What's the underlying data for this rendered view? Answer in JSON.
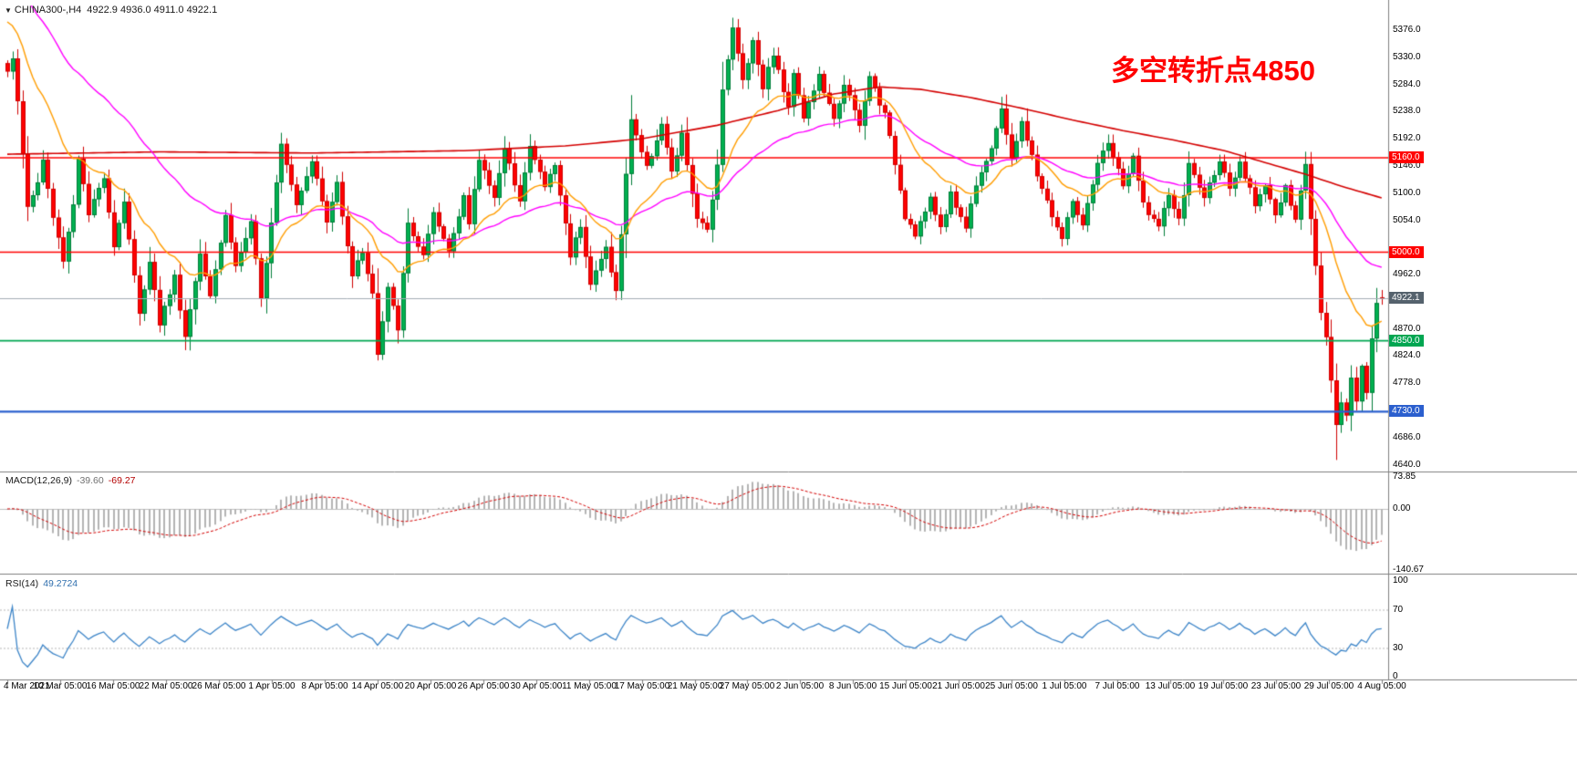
{
  "header": {
    "dropdown_icon": "▼",
    "symbol_period": "CHINA300-,H4",
    "ohlc_values": "4922.9 4936.0 4911.0 4922.1"
  },
  "chart_data": {
    "type": "candlestick",
    "symbol": "CHINA300-",
    "timeframe": "H4",
    "annotation": {
      "text": "多空转折点4850",
      "color": "#ff0000"
    },
    "last_candle": {
      "open": 4922.9,
      "high": 4936.0,
      "low": 4911.0,
      "close": 4922.1
    },
    "candles_n": 272,
    "price_path": [
      [
        0,
        5310
      ],
      [
        1,
        5332
      ],
      [
        2,
        5252
      ],
      [
        4,
        5078
      ],
      [
        6,
        5118
      ],
      [
        7,
        5156
      ],
      [
        9,
        5058
      ],
      [
        11,
        4988
      ],
      [
        13,
        5082
      ],
      [
        14,
        5162
      ],
      [
        16,
        5062
      ],
      [
        19,
        5130
      ],
      [
        21,
        5012
      ],
      [
        23,
        5088
      ],
      [
        26,
        4893
      ],
      [
        28,
        4988
      ],
      [
        30,
        4880
      ],
      [
        33,
        4958
      ],
      [
        35,
        4856
      ],
      [
        38,
        5000
      ],
      [
        40,
        4930
      ],
      [
        43,
        5062
      ],
      [
        45,
        4976
      ],
      [
        48,
        5048
      ],
      [
        50,
        4920
      ],
      [
        54,
        5188
      ],
      [
        57,
        5082
      ],
      [
        60,
        5158
      ],
      [
        63,
        5050
      ],
      [
        65,
        5118
      ],
      [
        68,
        4962
      ],
      [
        70,
        5002
      ],
      [
        72,
        4930
      ],
      [
        73,
        4825
      ],
      [
        75,
        4938
      ],
      [
        77,
        4872
      ],
      [
        79,
        5048
      ],
      [
        82,
        4992
      ],
      [
        84,
        5062
      ],
      [
        87,
        5002
      ],
      [
        90,
        5098
      ],
      [
        91,
        5046
      ],
      [
        93,
        5158
      ],
      [
        96,
        5096
      ],
      [
        98,
        5172
      ],
      [
        101,
        5092
      ],
      [
        103,
        5178
      ],
      [
        106,
        5112
      ],
      [
        108,
        5148
      ],
      [
        111,
        4996
      ],
      [
        113,
        5048
      ],
      [
        115,
        4946
      ],
      [
        118,
        5008
      ],
      [
        120,
        4932
      ],
      [
        123,
        5228
      ],
      [
        126,
        5142
      ],
      [
        129,
        5218
      ],
      [
        131,
        5132
      ],
      [
        133,
        5198
      ],
      [
        136,
        5052
      ],
      [
        138,
        5040
      ],
      [
        140,
        5148
      ],
      [
        141,
        5280
      ],
      [
        143,
        5378
      ],
      [
        145,
        5292
      ],
      [
        147,
        5358
      ],
      [
        149,
        5282
      ],
      [
        151,
        5338
      ],
      [
        154,
        5242
      ],
      [
        155,
        5308
      ],
      [
        157,
        5230
      ],
      [
        160,
        5298
      ],
      [
        163,
        5222
      ],
      [
        165,
        5288
      ],
      [
        168,
        5212
      ],
      [
        170,
        5298
      ],
      [
        173,
        5232
      ],
      [
        175,
        5152
      ],
      [
        177,
        5062
      ],
      [
        179,
        5032
      ],
      [
        182,
        5088
      ],
      [
        184,
        5042
      ],
      [
        186,
        5098
      ],
      [
        189,
        5042
      ],
      [
        191,
        5118
      ],
      [
        194,
        5178
      ],
      [
        196,
        5238
      ],
      [
        198,
        5162
      ],
      [
        200,
        5218
      ],
      [
        203,
        5132
      ],
      [
        206,
        5062
      ],
      [
        208,
        5022
      ],
      [
        210,
        5088
      ],
      [
        212,
        5042
      ],
      [
        215,
        5148
      ],
      [
        217,
        5188
      ],
      [
        220,
        5112
      ],
      [
        222,
        5158
      ],
      [
        224,
        5082
      ],
      [
        227,
        5042
      ],
      [
        229,
        5098
      ],
      [
        231,
        5052
      ],
      [
        233,
        5148
      ],
      [
        236,
        5092
      ],
      [
        239,
        5158
      ],
      [
        241,
        5102
      ],
      [
        243,
        5148
      ],
      [
        246,
        5082
      ],
      [
        248,
        5118
      ],
      [
        250,
        5062
      ],
      [
        252,
        5108
      ],
      [
        254,
        5052
      ],
      [
        256,
        5152
      ],
      [
        257,
        5058
      ],
      [
        258,
        4982
      ],
      [
        259,
        4902
      ],
      [
        260,
        4862
      ],
      [
        261,
        4782
      ],
      [
        262,
        4706
      ],
      [
        263,
        4746
      ],
      [
        264,
        4726
      ],
      [
        265,
        4790
      ],
      [
        266,
        4750
      ],
      [
        267,
        4806
      ],
      [
        268,
        4766
      ],
      [
        269,
        4850
      ],
      [
        270,
        4912
      ],
      [
        271,
        4922.1
      ]
    ],
    "spike_low": {
      "index": 262,
      "price": 4648
    },
    "price_axis": {
      "visible_min": 4640.0,
      "visible_max": 5376.0,
      "tick_step": 46,
      "ticks": [
        5376.0,
        5330.0,
        5284.0,
        5238.0,
        5192.0,
        5146.0,
        5100.0,
        5054.0,
        4962.0,
        4870.0,
        4824.0,
        4778.0,
        4686.0,
        4640.0
      ]
    },
    "hlines": [
      {
        "value": 5160.0,
        "label": "5160.0",
        "color": "#ff0000",
        "badge_bg": "#ff0000",
        "width": 1.6,
        "role": "resistance"
      },
      {
        "value": 5000.0,
        "label": "5000.0",
        "color": "#ff0000",
        "badge_bg": "#ff0000",
        "width": 1.6,
        "role": "support"
      },
      {
        "value": 4850.0,
        "label": "4850.0",
        "color": "#00a651",
        "badge_bg": "#00a651",
        "width": 1.6,
        "role": "turning-point"
      },
      {
        "value": 4730.0,
        "label": "4730.0",
        "color": "#2b5fce",
        "badge_bg": "#2b5fce",
        "width": 2.2,
        "role": "support"
      }
    ],
    "current_price": {
      "value": 4922.1,
      "label": "4922.1",
      "line_color": "#a3adb5",
      "badge_bg": "#55626d"
    },
    "moving_averages": {
      "fast": {
        "type": "ema",
        "period": 18,
        "seed": 5400,
        "color": "#ff9d00"
      },
      "medium": {
        "type": "ema",
        "period": 45,
        "seed": 5480,
        "color": "#ff00ff"
      },
      "slow": {
        "type": "anchors",
        "color": "#d40000",
        "points": [
          [
            0,
            5166
          ],
          [
            30,
            5170
          ],
          [
            60,
            5168
          ],
          [
            90,
            5172
          ],
          [
            110,
            5180
          ],
          [
            125,
            5192
          ],
          [
            140,
            5215
          ],
          [
            152,
            5240
          ],
          [
            163,
            5268
          ],
          [
            172,
            5280
          ],
          [
            180,
            5276
          ],
          [
            190,
            5262
          ],
          [
            200,
            5244
          ],
          [
            210,
            5224
          ],
          [
            220,
            5206
          ],
          [
            230,
            5190
          ],
          [
            240,
            5172
          ],
          [
            248,
            5152
          ],
          [
            256,
            5132
          ],
          [
            263,
            5112
          ],
          [
            271,
            5092
          ]
        ]
      }
    },
    "macd": {
      "label": "MACD(12,26,9)",
      "main_value": "-39.60",
      "signal_value": "-69.27",
      "fast_period": 12,
      "slow_period": 26,
      "signal_period": 9,
      "axis_values": [
        73.85,
        0,
        -140.67
      ],
      "axis_labels": [
        "73.85",
        "0.00",
        "-140.67"
      ],
      "bar_color": "#b4b4b4",
      "signal_color": "#d40000"
    },
    "rsi": {
      "label": "RSI(14)",
      "value": "49.2724",
      "period": 14,
      "axis_values": [
        100,
        70,
        30,
        0
      ],
      "axis_labels": [
        "100",
        "70",
        "30",
        "0"
      ],
      "levels": [
        70,
        30
      ],
      "line_color": "#3d85c8"
    },
    "time_axis": [
      "4 Mar 2021",
      "10 Mar 05:00",
      "16 Mar 05:00",
      "22 Mar 05:00",
      "26 Mar 05:00",
      "1 Apr 05:00",
      "8 Apr 05:00",
      "14 Apr 05:00",
      "20 Apr 05:00",
      "26 Apr 05:00",
      "30 Apr 05:00",
      "11 May 05:00",
      "17 May 05:00",
      "21 May 05:00",
      "27 May 05:00",
      "2 Jun 05:00",
      "8 Jun 05:00",
      "15 Jun 05:00",
      "21 Jun 05:00",
      "25 Jun 05:00",
      "1 Jul 05:00",
      "7 Jul 05:00",
      "13 Jul 05:00",
      "19 Jul 05:00",
      "23 Jul 05:00",
      "29 Jul 05:00",
      "4 Aug 05:00"
    ],
    "colors": {
      "bull_fill": "#00b050",
      "bull_border": "#007d38",
      "bear_fill": "#fe0000",
      "bear_border": "#cf0000",
      "separator": "#808080",
      "axis_text": "#000000",
      "background": "#ffffff"
    }
  }
}
